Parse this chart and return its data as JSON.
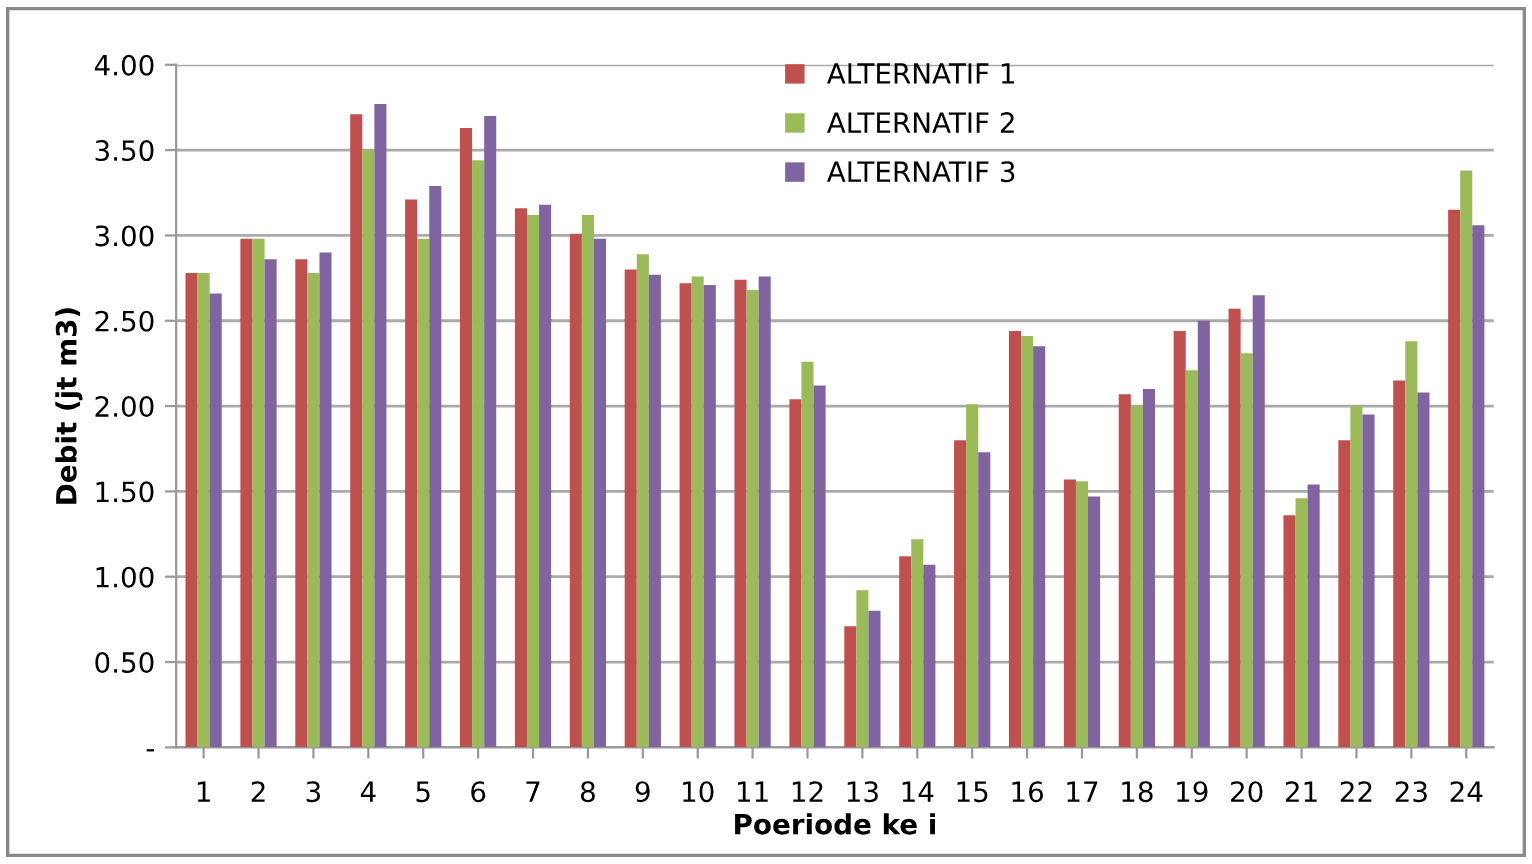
{
  "chart_data": {
    "type": "bar",
    "xlabel": "Poeriode ke i",
    "ylabel": "Debit (jt m3)",
    "categories": [
      "1",
      "2",
      "3",
      "4",
      "5",
      "6",
      "7",
      "8",
      "9",
      "10",
      "11",
      "12",
      "13",
      "14",
      "15",
      "16",
      "17",
      "18",
      "19",
      "20",
      "21",
      "22",
      "23",
      "24"
    ],
    "series": [
      {
        "name": "ALTERNATIF 1",
        "color": "#c0504d",
        "values": [
          2.78,
          2.98,
          2.86,
          3.71,
          3.21,
          3.63,
          3.16,
          3.01,
          2.8,
          2.72,
          2.74,
          2.04,
          0.71,
          1.12,
          1.8,
          2.44,
          1.57,
          2.07,
          2.44,
          2.57,
          1.36,
          1.8,
          2.15,
          3.15
        ]
      },
      {
        "name": "ALTERNATIF 2",
        "color": "#9bbb59",
        "values": [
          2.78,
          2.98,
          2.78,
          3.5,
          2.98,
          3.44,
          3.12,
          3.12,
          2.89,
          2.76,
          2.68,
          2.26,
          0.92,
          1.22,
          2.01,
          2.41,
          1.56,
          2.0,
          2.21,
          2.31,
          1.46,
          2.0,
          2.38,
          3.38
        ]
      },
      {
        "name": "ALTERNATIF 3",
        "color": "#8064a2",
        "values": [
          2.66,
          2.86,
          2.9,
          3.77,
          3.29,
          3.7,
          3.18,
          2.98,
          2.77,
          2.71,
          2.76,
          2.12,
          0.8,
          1.07,
          1.73,
          2.35,
          1.47,
          2.1,
          2.5,
          2.65,
          1.54,
          1.95,
          2.08,
          3.06
        ]
      }
    ],
    "ylim": [
      0,
      4
    ],
    "yticks": [
      {
        "value": 0,
        "label": "-"
      },
      {
        "value": 0.5,
        "label": "0.50"
      },
      {
        "value": 1,
        "label": "1.00"
      },
      {
        "value": 1.5,
        "label": "1.50"
      },
      {
        "value": 2,
        "label": "2.00"
      },
      {
        "value": 2.5,
        "label": "2.50"
      },
      {
        "value": 3,
        "label": "3.00"
      },
      {
        "value": 3.5,
        "label": "3.50"
      },
      {
        "value": 4,
        "label": "4.00"
      }
    ],
    "grid": "y",
    "legend": "top"
  }
}
